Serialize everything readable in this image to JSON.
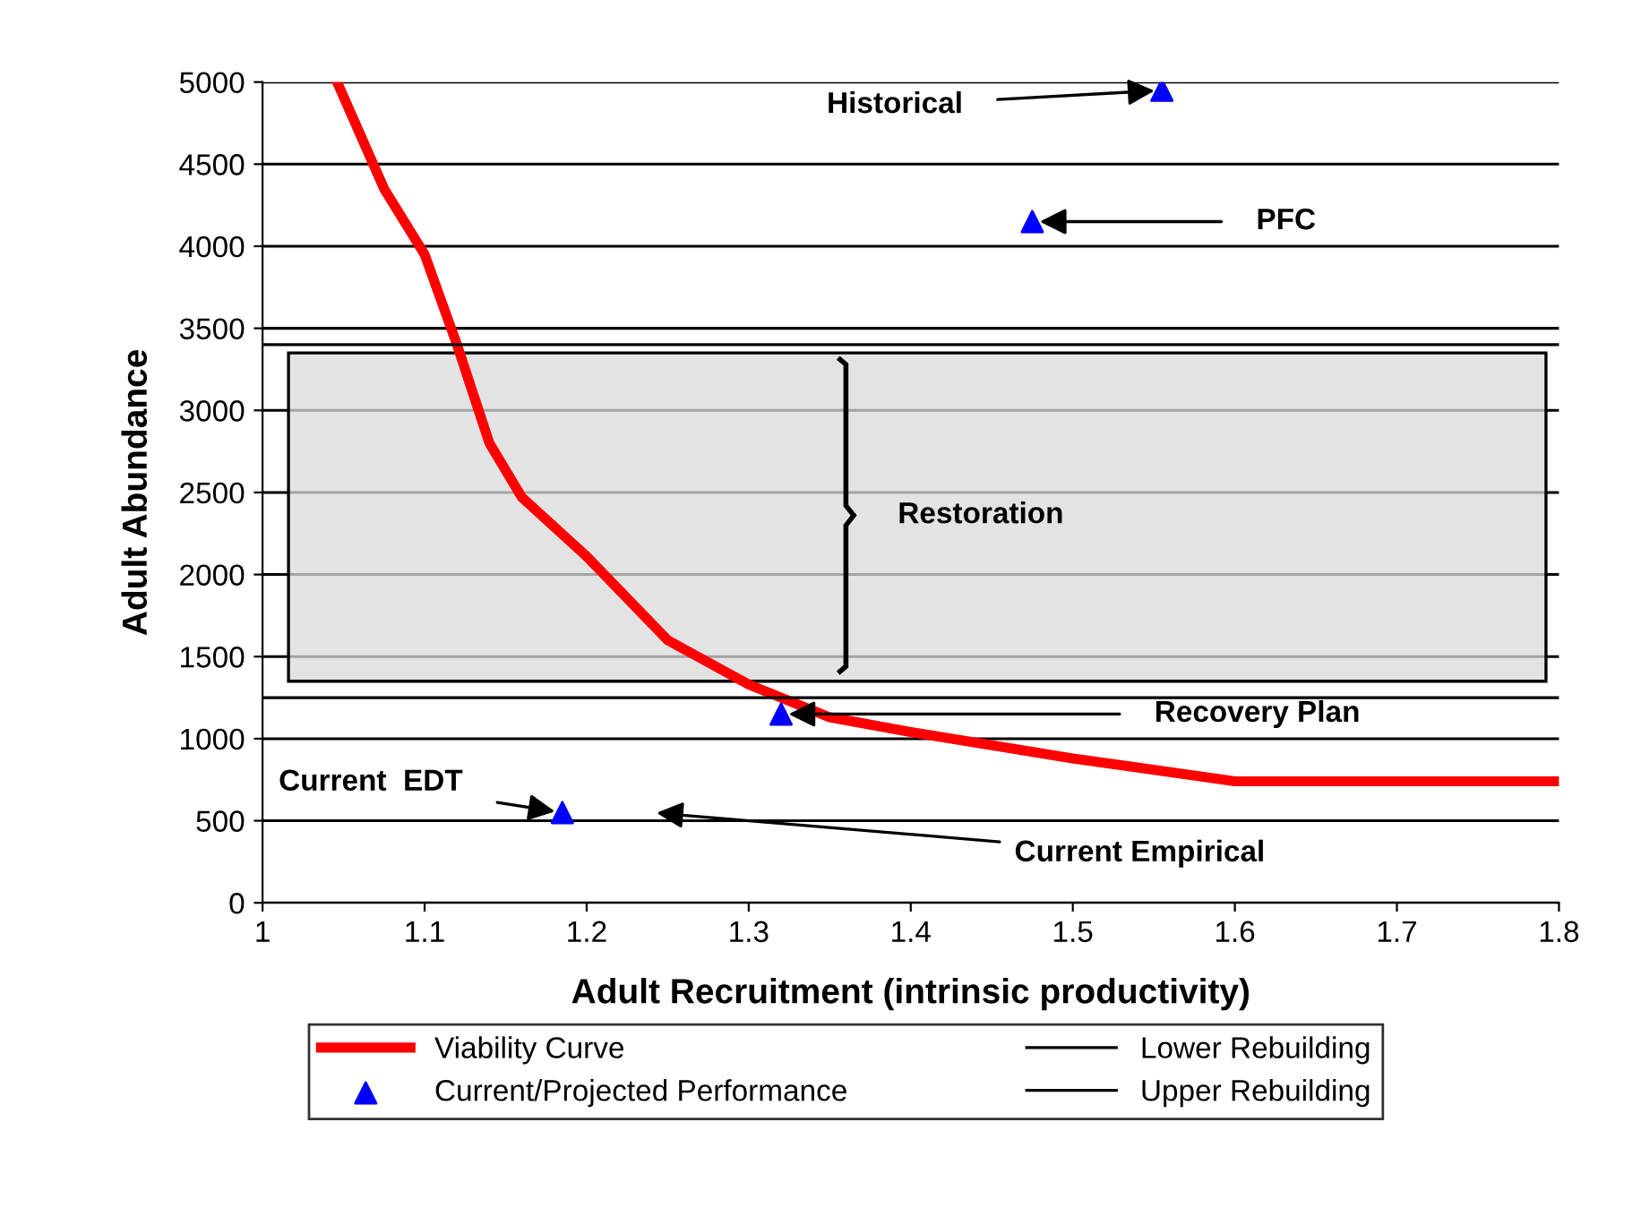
{
  "chart_data": {
    "type": "line",
    "xlabel": "Adult Recruitment (intrinsic productivity)",
    "ylabel": "Adult Abundance",
    "xlim": [
      1,
      1.8
    ],
    "xticks": [
      1,
      1.1,
      1.2,
      1.3,
      1.4,
      1.5,
      1.6,
      1.7,
      1.8
    ],
    "ylim": [
      0,
      5000
    ],
    "yticks": [
      0,
      500,
      1000,
      1500,
      2000,
      2500,
      3000,
      3500,
      4000,
      4500,
      5000
    ],
    "grid": "y",
    "legend": "bottom",
    "series": [
      {
        "name": "Viability Curve",
        "color": "#ff0000",
        "marker": "none",
        "x": [
          1.046,
          1.075,
          1.1,
          1.12,
          1.14,
          1.16,
          1.2,
          1.25,
          1.3,
          1.35,
          1.4,
          1.5,
          1.6,
          1.8
        ],
        "values": [
          5000,
          4350,
          3950,
          3400,
          2800,
          2470,
          2110,
          1600,
          1330,
          1130,
          1040,
          880,
          740,
          740
        ]
      },
      {
        "name": "Current/Projected Performance",
        "type": "scatter",
        "color": "#0000ff",
        "marker": "triangle",
        "x": [
          1.555,
          1.475,
          1.32,
          1.185
        ],
        "values": [
          4950,
          4150,
          1150,
          550
        ]
      },
      {
        "name": "Lower Rebuilding",
        "color": "#000000",
        "marker": "none",
        "x": [
          1,
          1.8
        ],
        "values": [
          1250,
          1250
        ]
      },
      {
        "name": "Upper Rebuilding",
        "color": "#000000",
        "marker": "none",
        "x": [
          1,
          1.8
        ],
        "values": [
          3400,
          3400
        ]
      }
    ],
    "bands": [
      {
        "axis": "y",
        "from": 1350,
        "to": 3350,
        "label": "Restoration",
        "color": "#d9d9d9"
      }
    ],
    "annotations": [
      {
        "text": "Historical",
        "x": 1.555,
        "y": 4950
      },
      {
        "text": "PFC",
        "x": 1.475,
        "y": 4150
      },
      {
        "text": "Recovery Plan",
        "x": 1.32,
        "y": 1150
      },
      {
        "text": "Current  EDT",
        "x": 1.185,
        "y": 550
      },
      "Current Empirical"
    ]
  }
}
